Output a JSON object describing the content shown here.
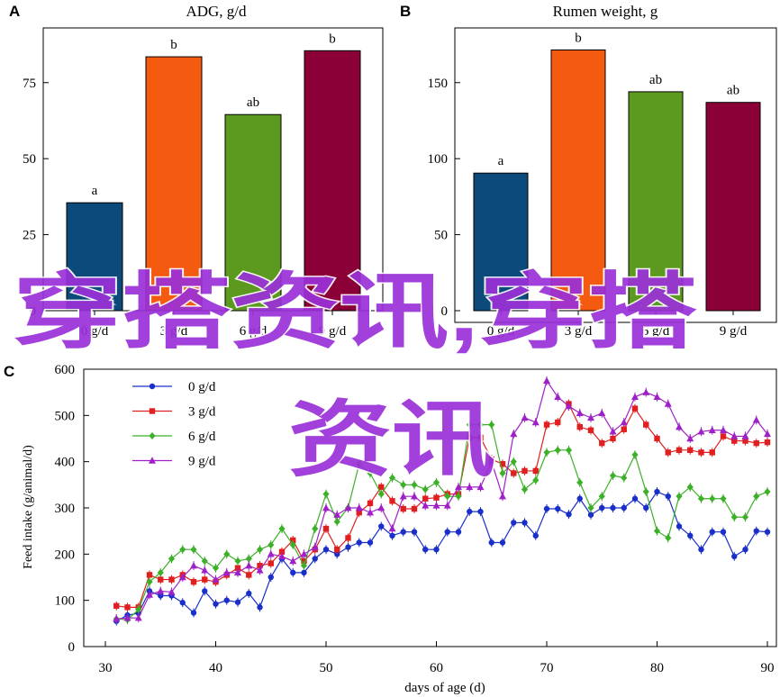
{
  "chart_data": [
    {
      "panel": "A",
      "type": "bar",
      "title": "ADG, g/d",
      "categories": [
        "0 g/d",
        "3 g/d",
        "6 g/d",
        "9 g/d"
      ],
      "values": [
        35.5,
        83.5,
        64.5,
        85.5
      ],
      "letters": [
        "a",
        "b",
        "ab",
        "b"
      ],
      "colors": [
        "#0b4a7a",
        "#f45a10",
        "#5b9a1e",
        "#8b0036"
      ],
      "ylim": [
        0,
        93
      ],
      "yticks": [
        0,
        25,
        50,
        75
      ]
    },
    {
      "panel": "B",
      "type": "bar",
      "title": "Rumen weight, g",
      "categories": [
        "0 g/d",
        "3 g/d",
        "6 g/d",
        "9 g/d"
      ],
      "values": [
        90.5,
        171.5,
        144,
        137
      ],
      "letters": [
        "a",
        "b",
        "ab",
        "ab"
      ],
      "colors": [
        "#0b4a7a",
        "#f45a10",
        "#5b9a1e",
        "#8b0036"
      ],
      "ylim": [
        0,
        186
      ],
      "yticks": [
        0,
        50,
        100,
        150
      ]
    },
    {
      "panel": "C",
      "type": "line",
      "xlabel": "days of age (d)",
      "ylabel": "Feed intake (g/animal/d)",
      "xlim": [
        30,
        90
      ],
      "ylim": [
        0,
        600
      ],
      "xticks": [
        30,
        40,
        50,
        60,
        70,
        80,
        90
      ],
      "yticks": [
        0,
        100,
        200,
        300,
        400,
        500,
        600
      ],
      "x": [
        31,
        32,
        33,
        34,
        35,
        36,
        37,
        38,
        39,
        40,
        41,
        42,
        43,
        44,
        45,
        46,
        47,
        48,
        49,
        50,
        51,
        52,
        53,
        54,
        55,
        56,
        57,
        58,
        59,
        60,
        61,
        62,
        63,
        64,
        65,
        66,
        67,
        68,
        69,
        70,
        71,
        72,
        73,
        74,
        75,
        76,
        77,
        78,
        79,
        80,
        81,
        82,
        83,
        84,
        85,
        86,
        87,
        88,
        89,
        90
      ],
      "series": [
        {
          "name": "0 g/d",
          "color": "#1a2fc9",
          "marker": "circle",
          "values": [
            55,
            68,
            72,
            120,
            110,
            110,
            95,
            73,
            120,
            92,
            100,
            96,
            115,
            85,
            150,
            190,
            160,
            160,
            190,
            210,
            200,
            215,
            225,
            225,
            260,
            240,
            248,
            248,
            210,
            210,
            248,
            248,
            292,
            292,
            225,
            225,
            268,
            268,
            240,
            298,
            298,
            286,
            320,
            285,
            300,
            300,
            300,
            320,
            300,
            335,
            325,
            260,
            240,
            210,
            248,
            248,
            195,
            210,
            250,
            248
          ]
        },
        {
          "name": "3 g/d",
          "color": "#e02020",
          "marker": "square",
          "values": [
            88,
            85,
            85,
            155,
            145,
            145,
            155,
            140,
            145,
            140,
            155,
            170,
            155,
            175,
            180,
            205,
            230,
            185,
            210,
            255,
            210,
            235,
            290,
            310,
            345,
            315,
            298,
            298,
            320,
            322,
            330,
            330,
            452,
            452,
            405,
            395,
            375,
            380,
            380,
            480,
            485,
            525,
            475,
            468,
            440,
            450,
            470,
            515,
            480,
            450,
            420,
            425,
            425,
            420,
            420,
            455,
            445,
            445,
            440,
            442
          ]
        },
        {
          "name": "6 g/d",
          "color": "#3cb028",
          "marker": "diamond",
          "values": [
            60,
            58,
            80,
            140,
            160,
            190,
            210,
            210,
            185,
            170,
            200,
            185,
            190,
            210,
            220,
            255,
            220,
            175,
            255,
            330,
            270,
            300,
            395,
            375,
            330,
            365,
            350,
            350,
            340,
            355,
            325,
            325,
            480,
            480,
            480,
            375,
            400,
            340,
            360,
            420,
            425,
            425,
            355,
            300,
            325,
            370,
            365,
            415,
            335,
            250,
            235,
            325,
            345,
            320,
            320,
            320,
            280,
            280,
            325,
            335
          ]
        },
        {
          "name": "9 g/d",
          "color": "#a020c8",
          "marker": "triangle",
          "values": [
            60,
            62,
            62,
            112,
            120,
            118,
            150,
            175,
            165,
            145,
            160,
            160,
            175,
            165,
            200,
            195,
            185,
            200,
            215,
            300,
            285,
            300,
            300,
            290,
            300,
            255,
            325,
            325,
            305,
            305,
            305,
            345,
            345,
            345,
            400,
            325,
            460,
            495,
            485,
            575,
            540,
            520,
            505,
            495,
            505,
            465,
            485,
            540,
            550,
            540,
            525,
            475,
            450,
            465,
            468,
            468,
            455,
            455,
            490,
            460
          ]
        }
      ]
    }
  ],
  "panel_labels": [
    "A",
    "B",
    "C"
  ],
  "watermark": "穿搭资讯,穿搭资讯"
}
